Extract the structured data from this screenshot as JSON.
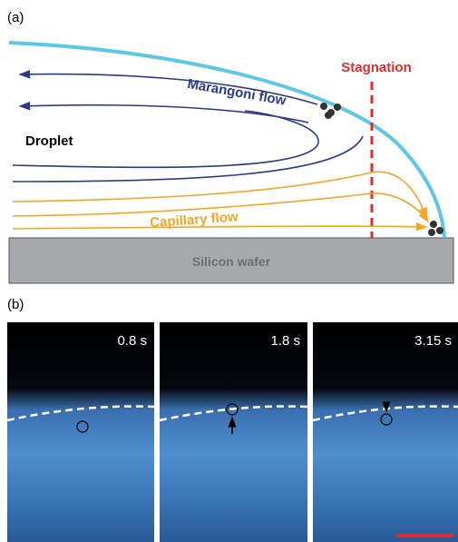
{
  "panel_a": {
    "label": "(a)",
    "stagnation": "Stagnation",
    "marangoni": "Marangoni flow",
    "droplet": "Droplet",
    "capillary": "Capillary flow",
    "substrate": "Silicon wafer"
  },
  "panel_b": {
    "label": "(b)",
    "frames": [
      "0.8 s",
      "1.8 s",
      "3.15 s"
    ]
  }
}
